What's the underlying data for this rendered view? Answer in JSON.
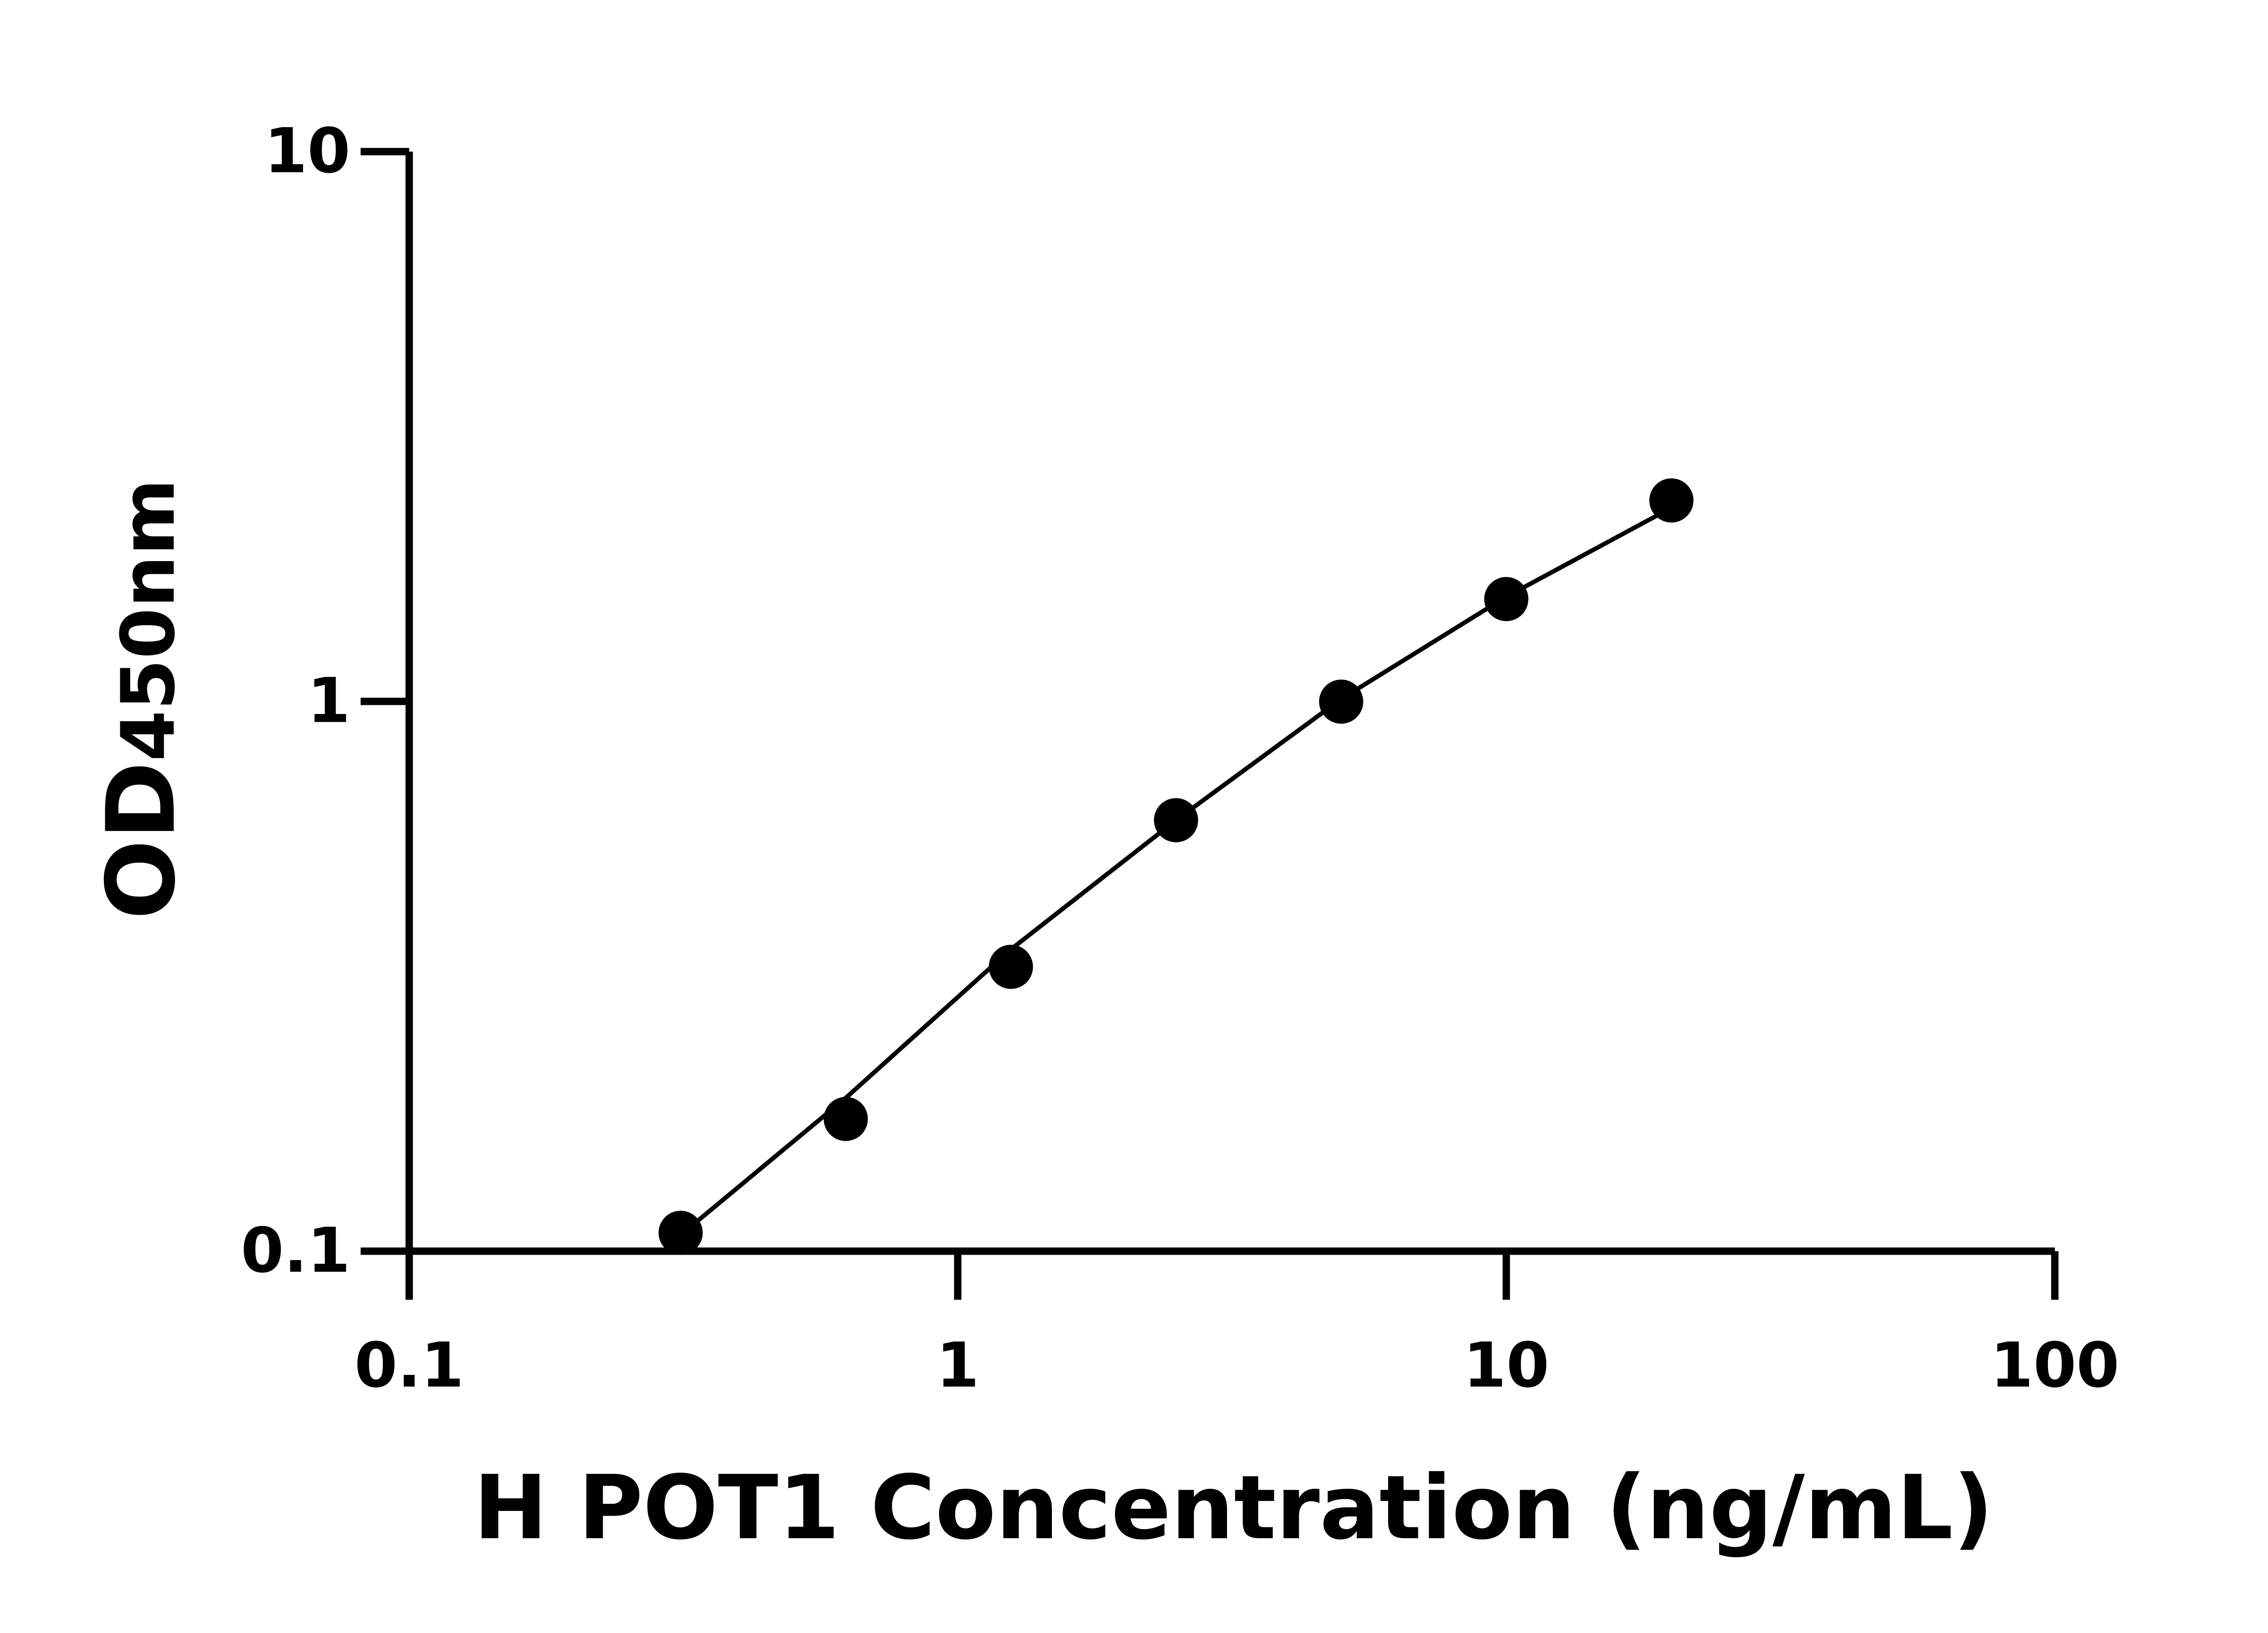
{
  "chart_data": {
    "type": "scatter",
    "xlabel": "H POT1 Concentration (ng/mL)",
    "ylabel": [
      "OD",
      "450nm"
    ],
    "x": [
      0.3125,
      0.625,
      1.25,
      2.5,
      5,
      10,
      20
    ],
    "values": [
      0.108,
      0.174,
      0.329,
      0.608,
      0.999,
      1.535,
      2.32
    ],
    "fit": {
      "x": [
        0.3125,
        0.625,
        1.25,
        2.5,
        5,
        10,
        20
      ],
      "values": [
        0.107,
        0.19,
        0.354,
        0.608,
        1.01,
        1.55,
        2.25
      ]
    },
    "color": "#000000",
    "xscale": "log",
    "yscale": "log",
    "xlim": [
      0.1,
      100
    ],
    "ylim": [
      0.1,
      10
    ],
    "xticks": [
      0.1,
      1,
      10,
      100
    ],
    "yticks": [
      0.1,
      1,
      10
    ]
  }
}
